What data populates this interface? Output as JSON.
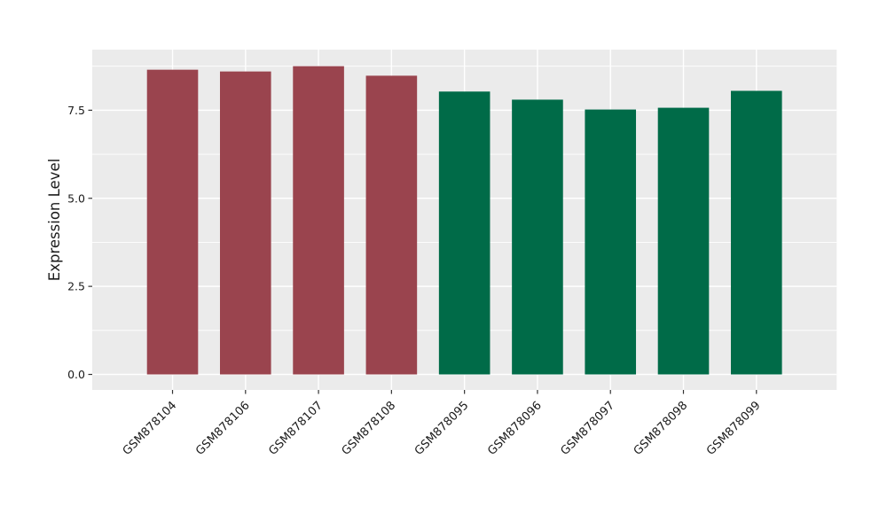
{
  "chart_data": {
    "type": "bar",
    "title": "",
    "ylabel": "Expression Level",
    "categories": [
      "GSM878104",
      "GSM878106",
      "GSM878107",
      "GSM878108",
      "GSM878095",
      "GSM878096",
      "GSM878097",
      "GSM878098",
      "GSM878099"
    ],
    "values": [
      8.65,
      8.6,
      8.75,
      8.48,
      8.03,
      7.8,
      7.52,
      7.57,
      8.05
    ],
    "bar_colors": [
      "#9A444E",
      "#9A444E",
      "#9A444E",
      "#9A444E",
      "#006B48",
      "#006B48",
      "#006B48",
      "#006B48",
      "#006B48"
    ],
    "group_colors": {
      "red_group": "#9A444E",
      "green_group": "#006B48"
    },
    "ytick_labels": [
      "0.0",
      "2.5",
      "5.0",
      "7.5"
    ],
    "yticks": [
      0.0,
      2.5,
      5.0,
      7.5
    ],
    "minor_yticks": [
      1.25,
      3.75,
      6.25,
      8.75
    ],
    "ylim": [
      -0.44,
      9.22
    ],
    "xtick_angle_deg": -45,
    "grid": "on",
    "legend_position": "none",
    "panel_bg": "#EBEBEB",
    "grid_color": "#FFFFFF",
    "text_color": "#1A1A1A",
    "tick_mark_color": "#333333",
    "bar_width_frac": 0.7,
    "category_expand": 0.6
  }
}
